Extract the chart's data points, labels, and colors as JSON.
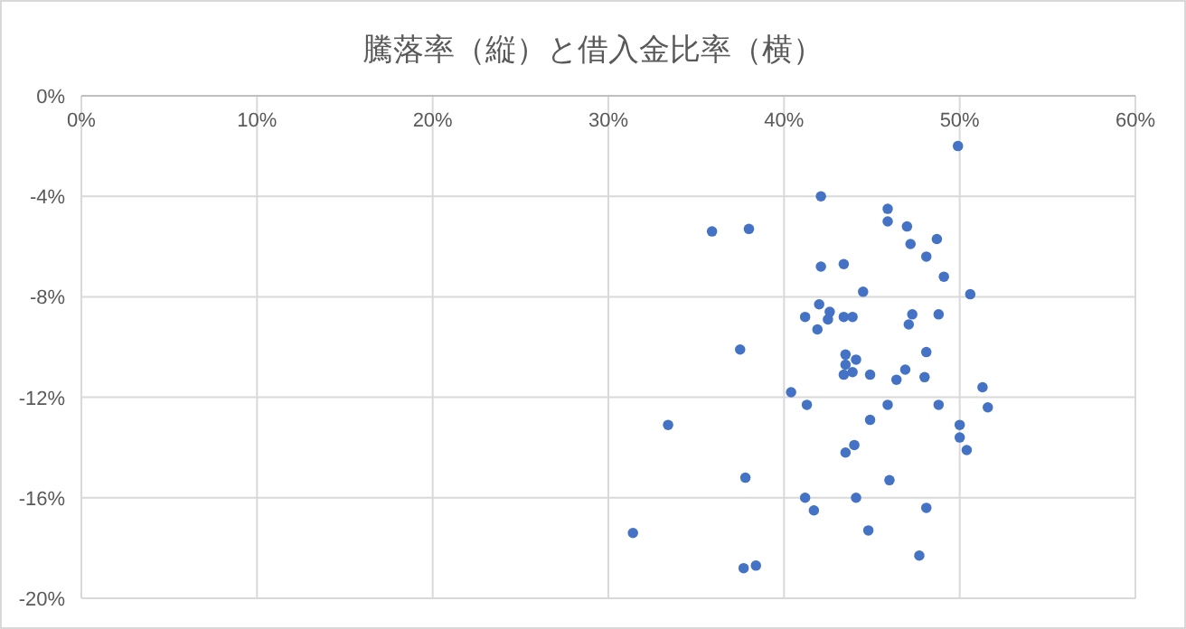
{
  "chart_data": {
    "type": "scatter",
    "title": "騰落率（縦）と借入金比率（横）",
    "xlim": [
      0,
      60
    ],
    "xticks": [
      {
        "value": 0,
        "label": "0%"
      },
      {
        "value": 10,
        "label": "10%"
      },
      {
        "value": 20,
        "label": "20%"
      },
      {
        "value": 30,
        "label": "30%"
      },
      {
        "value": 40,
        "label": "40%"
      },
      {
        "value": 50,
        "label": "50%"
      },
      {
        "value": 60,
        "label": "60%"
      }
    ],
    "ylim": [
      -20,
      0
    ],
    "yticks": [
      {
        "value": 0,
        "label": "0%"
      },
      {
        "value": -4,
        "label": "-4%"
      },
      {
        "value": -8,
        "label": "-8%"
      },
      {
        "value": -12,
        "label": "-12%"
      },
      {
        "value": -16,
        "label": "-16%"
      },
      {
        "value": -20,
        "label": "-20%"
      }
    ],
    "grid": true,
    "marker": "circle",
    "color": "#4472c4",
    "x": [
      49.9,
      42.1,
      45.9,
      45.9,
      47.0,
      47.2,
      48.7,
      48.1,
      49.1,
      50.6,
      35.9,
      38.0,
      42.1,
      43.4,
      44.5,
      42.0,
      41.2,
      42.6,
      42.5,
      41.9,
      43.4,
      43.9,
      47.3,
      47.1,
      48.8,
      37.5,
      43.5,
      44.1,
      43.5,
      43.4,
      43.9,
      44.9,
      48.1,
      46.9,
      46.4,
      48.0,
      51.3,
      51.6,
      40.4,
      41.3,
      45.9,
      48.8,
      44.9,
      50.0,
      50.0,
      50.4,
      44.0,
      43.5,
      33.4,
      37.8,
      46.0,
      41.2,
      41.7,
      44.1,
      48.1,
      44.8,
      31.4,
      47.7,
      37.7,
      38.4
    ],
    "values": [
      -2.0,
      -4.0,
      -4.5,
      -5.0,
      -5.2,
      -5.9,
      -5.7,
      -6.4,
      -7.2,
      -7.9,
      -5.4,
      -5.3,
      -6.8,
      -6.7,
      -7.8,
      -8.3,
      -8.8,
      -8.6,
      -8.9,
      -9.3,
      -8.8,
      -8.8,
      -8.7,
      -9.1,
      -8.7,
      -10.1,
      -10.3,
      -10.5,
      -10.7,
      -11.1,
      -11.0,
      -11.1,
      -10.2,
      -10.9,
      -11.3,
      -11.2,
      -11.6,
      -12.4,
      -11.8,
      -12.3,
      -12.3,
      -12.3,
      -12.9,
      -13.1,
      -13.6,
      -14.1,
      -13.9,
      -14.2,
      -13.1,
      -15.2,
      -15.3,
      -16.0,
      -16.5,
      -16.0,
      -16.4,
      -17.3,
      -17.4,
      -18.3,
      -18.8,
      -18.7
    ]
  }
}
